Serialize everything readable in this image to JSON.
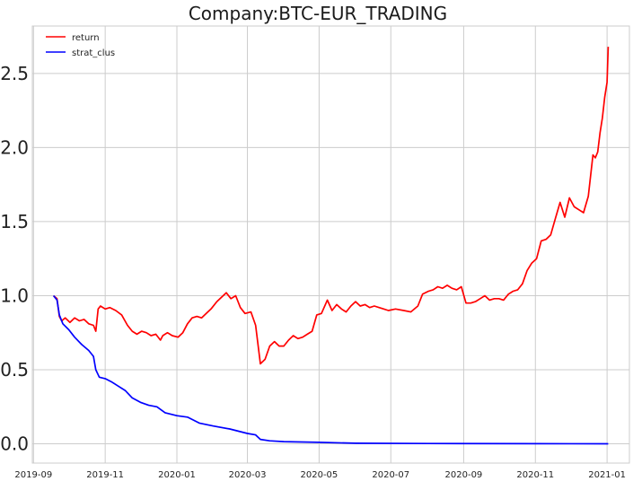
{
  "chart_data": {
    "type": "line",
    "title": "Company:BTC-EUR_TRADING",
    "xlabel": "",
    "ylabel": "",
    "x_ticks": [
      "2019-09",
      "2019-11",
      "2020-01",
      "2020-03",
      "2020-05",
      "2020-07",
      "2020-09",
      "2020-11",
      "2021-01"
    ],
    "y_ticks": [
      "0.0",
      "0.5",
      "1.0",
      "1.5",
      "2.0",
      "2.5"
    ],
    "xlim": [
      "2019-08-31",
      "2021-01-20"
    ],
    "ylim": [
      -0.13,
      2.82
    ],
    "grid": true,
    "legend_position": "top-left",
    "series": [
      {
        "name": "return",
        "color": "#ff0000",
        "points": [
          [
            "2019-09-18",
            1.0
          ],
          [
            "2019-09-21",
            0.98
          ],
          [
            "2019-09-23",
            0.86
          ],
          [
            "2019-09-25",
            0.83
          ],
          [
            "2019-09-28",
            0.85
          ],
          [
            "2019-10-02",
            0.82
          ],
          [
            "2019-10-06",
            0.85
          ],
          [
            "2019-10-10",
            0.83
          ],
          [
            "2019-10-14",
            0.84
          ],
          [
            "2019-10-18",
            0.81
          ],
          [
            "2019-10-22",
            0.8
          ],
          [
            "2019-10-24",
            0.76
          ],
          [
            "2019-10-26",
            0.91
          ],
          [
            "2019-10-28",
            0.93
          ],
          [
            "2019-11-01",
            0.91
          ],
          [
            "2019-11-05",
            0.92
          ],
          [
            "2019-11-10",
            0.9
          ],
          [
            "2019-11-15",
            0.87
          ],
          [
            "2019-11-20",
            0.8
          ],
          [
            "2019-11-24",
            0.76
          ],
          [
            "2019-11-28",
            0.74
          ],
          [
            "2019-12-02",
            0.76
          ],
          [
            "2019-12-06",
            0.75
          ],
          [
            "2019-12-10",
            0.73
          ],
          [
            "2019-12-14",
            0.74
          ],
          [
            "2019-12-18",
            0.7
          ],
          [
            "2019-12-20",
            0.73
          ],
          [
            "2019-12-24",
            0.75
          ],
          [
            "2019-12-28",
            0.73
          ],
          [
            "2020-01-02",
            0.72
          ],
          [
            "2020-01-06",
            0.75
          ],
          [
            "2020-01-10",
            0.81
          ],
          [
            "2020-01-14",
            0.85
          ],
          [
            "2020-01-18",
            0.86
          ],
          [
            "2020-01-22",
            0.85
          ],
          [
            "2020-01-26",
            0.88
          ],
          [
            "2020-01-30",
            0.91
          ],
          [
            "2020-02-04",
            0.96
          ],
          [
            "2020-02-08",
            0.99
          ],
          [
            "2020-02-12",
            1.02
          ],
          [
            "2020-02-16",
            0.98
          ],
          [
            "2020-02-20",
            1.0
          ],
          [
            "2020-02-24",
            0.92
          ],
          [
            "2020-02-28",
            0.88
          ],
          [
            "2020-03-04",
            0.89
          ],
          [
            "2020-03-08",
            0.8
          ],
          [
            "2020-03-12",
            0.54
          ],
          [
            "2020-03-16",
            0.57
          ],
          [
            "2020-03-20",
            0.66
          ],
          [
            "2020-03-24",
            0.69
          ],
          [
            "2020-03-28",
            0.66
          ],
          [
            "2020-04-01",
            0.66
          ],
          [
            "2020-04-05",
            0.7
          ],
          [
            "2020-04-09",
            0.73
          ],
          [
            "2020-04-13",
            0.71
          ],
          [
            "2020-04-17",
            0.72
          ],
          [
            "2020-04-21",
            0.74
          ],
          [
            "2020-04-25",
            0.76
          ],
          [
            "2020-04-29",
            0.87
          ],
          [
            "2020-05-03",
            0.88
          ],
          [
            "2020-05-08",
            0.97
          ],
          [
            "2020-05-12",
            0.9
          ],
          [
            "2020-05-16",
            0.94
          ],
          [
            "2020-05-20",
            0.91
          ],
          [
            "2020-05-24",
            0.89
          ],
          [
            "2020-05-28",
            0.93
          ],
          [
            "2020-06-01",
            0.96
          ],
          [
            "2020-06-05",
            0.93
          ],
          [
            "2020-06-09",
            0.94
          ],
          [
            "2020-06-13",
            0.92
          ],
          [
            "2020-06-17",
            0.93
          ],
          [
            "2020-06-21",
            0.92
          ],
          [
            "2020-06-25",
            0.91
          ],
          [
            "2020-06-29",
            0.9
          ],
          [
            "2020-07-05",
            0.91
          ],
          [
            "2020-07-12",
            0.9
          ],
          [
            "2020-07-18",
            0.89
          ],
          [
            "2020-07-24",
            0.93
          ],
          [
            "2020-07-28",
            1.01
          ],
          [
            "2020-08-02",
            1.03
          ],
          [
            "2020-08-06",
            1.04
          ],
          [
            "2020-08-10",
            1.06
          ],
          [
            "2020-08-14",
            1.05
          ],
          [
            "2020-08-18",
            1.07
          ],
          [
            "2020-08-22",
            1.05
          ],
          [
            "2020-08-26",
            1.04
          ],
          [
            "2020-08-30",
            1.06
          ],
          [
            "2020-09-03",
            0.95
          ],
          [
            "2020-09-07",
            0.95
          ],
          [
            "2020-09-11",
            0.96
          ],
          [
            "2020-09-15",
            0.98
          ],
          [
            "2020-09-19",
            1.0
          ],
          [
            "2020-09-23",
            0.97
          ],
          [
            "2020-09-27",
            0.98
          ],
          [
            "2020-10-01",
            0.98
          ],
          [
            "2020-10-05",
            0.97
          ],
          [
            "2020-10-09",
            1.01
          ],
          [
            "2020-10-13",
            1.03
          ],
          [
            "2020-10-17",
            1.04
          ],
          [
            "2020-10-21",
            1.08
          ],
          [
            "2020-10-25",
            1.17
          ],
          [
            "2020-10-29",
            1.22
          ],
          [
            "2020-11-02",
            1.25
          ],
          [
            "2020-11-06",
            1.37
          ],
          [
            "2020-11-10",
            1.38
          ],
          [
            "2020-11-14",
            1.41
          ],
          [
            "2020-11-18",
            1.52
          ],
          [
            "2020-11-22",
            1.63
          ],
          [
            "2020-11-26",
            1.53
          ],
          [
            "2020-11-30",
            1.66
          ],
          [
            "2020-12-04",
            1.6
          ],
          [
            "2020-12-08",
            1.58
          ],
          [
            "2020-12-12",
            1.56
          ],
          [
            "2020-12-16",
            1.67
          ],
          [
            "2020-12-20",
            1.95
          ],
          [
            "2020-12-22",
            1.93
          ],
          [
            "2020-12-24",
            1.97
          ],
          [
            "2020-12-26",
            2.1
          ],
          [
            "2020-12-28",
            2.2
          ],
          [
            "2020-12-30",
            2.34
          ],
          [
            "2021-01-01",
            2.44
          ],
          [
            "2021-01-02",
            2.68
          ]
        ]
      },
      {
        "name": "strat_clus",
        "color": "#0000ff",
        "points": [
          [
            "2019-09-18",
            1.0
          ],
          [
            "2019-09-21",
            0.97
          ],
          [
            "2019-09-23",
            0.87
          ],
          [
            "2019-09-26",
            0.81
          ],
          [
            "2019-10-01",
            0.77
          ],
          [
            "2019-10-06",
            0.72
          ],
          [
            "2019-10-12",
            0.67
          ],
          [
            "2019-10-18",
            0.63
          ],
          [
            "2019-10-22",
            0.59
          ],
          [
            "2019-10-24",
            0.5
          ],
          [
            "2019-10-27",
            0.45
          ],
          [
            "2019-11-01",
            0.44
          ],
          [
            "2019-11-06",
            0.42
          ],
          [
            "2019-11-12",
            0.39
          ],
          [
            "2019-11-18",
            0.36
          ],
          [
            "2019-11-24",
            0.31
          ],
          [
            "2019-12-01",
            0.28
          ],
          [
            "2019-12-08",
            0.26
          ],
          [
            "2019-12-15",
            0.25
          ],
          [
            "2019-12-22",
            0.21
          ],
          [
            "2020-01-01",
            0.19
          ],
          [
            "2020-01-10",
            0.18
          ],
          [
            "2020-01-20",
            0.14
          ],
          [
            "2020-02-01",
            0.12
          ],
          [
            "2020-02-15",
            0.1
          ],
          [
            "2020-03-01",
            0.07
          ],
          [
            "2020-03-08",
            0.06
          ],
          [
            "2020-03-12",
            0.03
          ],
          [
            "2020-03-20",
            0.02
          ],
          [
            "2020-04-01",
            0.015
          ],
          [
            "2020-05-01",
            0.01
          ],
          [
            "2020-06-01",
            0.004
          ],
          [
            "2020-08-01",
            0.002
          ],
          [
            "2020-11-01",
            0.001
          ],
          [
            "2021-01-02",
            0.0
          ]
        ]
      }
    ]
  }
}
